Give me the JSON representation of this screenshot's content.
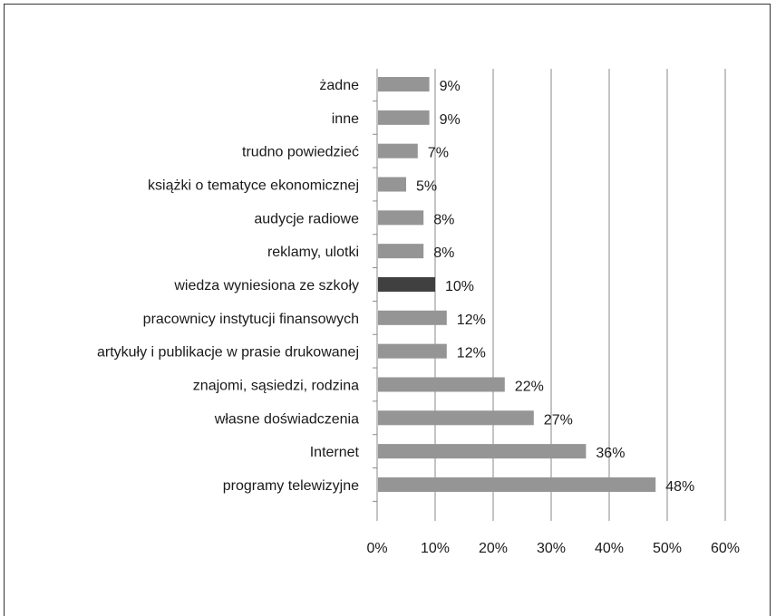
{
  "chart_data": {
    "type": "bar",
    "orientation": "horizontal",
    "categories": [
      "żadne",
      "inne",
      "trudno powiedzieć",
      "książki o tematyce ekonomicznej",
      "audycje radiowe",
      "reklamy, ulotki",
      "wiedza wyniesiona ze szkoły",
      "pracownicy instytucji finansowych",
      "artykuły i publikacje w prasie drukowanej",
      "znajomi, sąsiedzi, rodzina",
      "własne doświadczenia",
      "Internet",
      "programy telewizyjne"
    ],
    "values": [
      9,
      9,
      7,
      5,
      8,
      8,
      10,
      12,
      12,
      22,
      27,
      36,
      48
    ],
    "data_labels": [
      "9%",
      "9%",
      "7%",
      "5%",
      "8%",
      "8%",
      "10%",
      "12%",
      "12%",
      "22%",
      "27%",
      "36%",
      "48%"
    ],
    "highlight_index": 6,
    "colors": {
      "bar": "#959595",
      "highlight": "#404040",
      "grid": "#8a8a8a"
    },
    "xlim": [
      0,
      60
    ],
    "xticks": [
      0,
      10,
      20,
      30,
      40,
      50,
      60
    ],
    "xtick_labels": [
      "0%",
      "10%",
      "20%",
      "30%",
      "40%",
      "50%",
      "60%"
    ],
    "grid": "vertical",
    "title": "",
    "xlabel": "",
    "ylabel": ""
  }
}
